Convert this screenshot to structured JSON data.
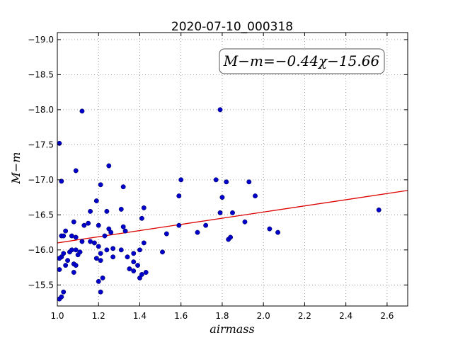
{
  "chart_data": {
    "type": "scatter",
    "title": "2020-07-10_000318",
    "xlabel": "airmass",
    "ylabel": "M−m",
    "xlim": [
      1.0,
      2.7
    ],
    "ylim": [
      -19.1,
      -15.2
    ],
    "y_inverted": true,
    "xticks": [
      "1.0",
      "1.2",
      "1.4",
      "1.6",
      "1.8",
      "2.0",
      "2.2",
      "2.4",
      "2.6"
    ],
    "yticks": [
      "−15.5",
      "−16.0",
      "−16.5",
      "−17.0",
      "−17.5",
      "−18.0",
      "−18.5",
      "−19.0"
    ],
    "grid": true,
    "fit_label": "M−m=−0.44χ−15.66",
    "fit": {
      "slope": -0.44,
      "intercept": -15.66
    },
    "colors": {
      "points": "#0000cc",
      "fit_line": "#dd0000",
      "axes": "#000000",
      "grid": "#888888"
    },
    "points": [
      [
        1.01,
        -15.3
      ],
      [
        1.02,
        -15.33
      ],
      [
        1.03,
        -15.4
      ],
      [
        1.01,
        -15.72
      ],
      [
        1.04,
        -15.78
      ],
      [
        1.05,
        -15.85
      ],
      [
        1.02,
        -15.9
      ],
      [
        1.03,
        -15.95
      ],
      [
        1.01,
        -15.88
      ],
      [
        1.06,
        -15.97
      ],
      [
        1.07,
        -16.0
      ],
      [
        1.08,
        -15.8
      ],
      [
        1.08,
        -15.68
      ],
      [
        1.09,
        -15.78
      ],
      [
        1.1,
        -15.93
      ],
      [
        1.11,
        -15.97
      ],
      [
        1.09,
        -16.0
      ],
      [
        1.02,
        -16.2
      ],
      [
        1.03,
        -16.2
      ],
      [
        1.04,
        -16.27
      ],
      [
        1.07,
        -16.2
      ],
      [
        1.09,
        -16.18
      ],
      [
        1.12,
        -16.12
      ],
      [
        1.13,
        -16.35
      ],
      [
        1.08,
        -16.4
      ],
      [
        1.15,
        -16.38
      ],
      [
        1.02,
        -16.98
      ],
      [
        1.09,
        -17.13
      ],
      [
        1.01,
        -17.52
      ],
      [
        1.12,
        -17.98
      ],
      [
        1.16,
        -16.12
      ],
      [
        1.18,
        -16.1
      ],
      [
        1.16,
        -16.55
      ],
      [
        1.19,
        -16.7
      ],
      [
        1.2,
        -16.35
      ],
      [
        1.21,
        -16.93
      ],
      [
        1.19,
        -15.88
      ],
      [
        1.2,
        -16.05
      ],
      [
        1.21,
        -15.95
      ],
      [
        1.21,
        -15.85
      ],
      [
        1.2,
        -15.55
      ],
      [
        1.21,
        -15.4
      ],
      [
        1.22,
        -15.6
      ],
      [
        1.23,
        -16.2
      ],
      [
        1.24,
        -16.0
      ],
      [
        1.25,
        -16.3
      ],
      [
        1.26,
        -16.25
      ],
      [
        1.24,
        -16.55
      ],
      [
        1.27,
        -15.9
      ],
      [
        1.27,
        -16.02
      ],
      [
        1.25,
        -17.2
      ],
      [
        1.31,
        -16.0
      ],
      [
        1.32,
        -16.33
      ],
      [
        1.33,
        -16.27
      ],
      [
        1.31,
        -16.58
      ],
      [
        1.32,
        -16.9
      ],
      [
        1.34,
        -15.9
      ],
      [
        1.35,
        -15.73
      ],
      [
        1.37,
        -15.7
      ],
      [
        1.37,
        -15.83
      ],
      [
        1.37,
        -15.95
      ],
      [
        1.39,
        -15.78
      ],
      [
        1.4,
        -15.6
      ],
      [
        1.41,
        -15.65
      ],
      [
        1.4,
        -16.0
      ],
      [
        1.42,
        -16.1
      ],
      [
        1.43,
        -15.68
      ],
      [
        1.41,
        -16.45
      ],
      [
        1.42,
        -16.6
      ],
      [
        1.51,
        -15.97
      ],
      [
        1.53,
        -16.23
      ],
      [
        1.59,
        -16.35
      ],
      [
        1.59,
        -16.77
      ],
      [
        1.6,
        -17.0
      ],
      [
        1.68,
        -16.25
      ],
      [
        1.72,
        -16.35
      ],
      [
        1.77,
        -17.0
      ],
      [
        1.79,
        -16.53
      ],
      [
        1.8,
        -16.75
      ],
      [
        1.82,
        -16.97
      ],
      [
        1.83,
        -16.15
      ],
      [
        1.84,
        -16.18
      ],
      [
        1.85,
        -16.53
      ],
      [
        1.79,
        -18.0
      ],
      [
        1.91,
        -16.4
      ],
      [
        1.93,
        -16.97
      ],
      [
        1.96,
        -16.77
      ],
      [
        2.03,
        -16.3
      ],
      [
        2.07,
        -16.25
      ],
      [
        2.56,
        -16.57
      ]
    ]
  }
}
